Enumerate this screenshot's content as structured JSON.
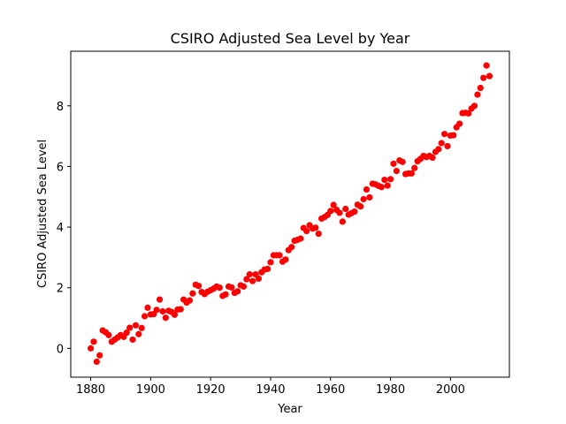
{
  "chart_data": {
    "type": "scatter",
    "title": "CSIRO Adjusted Sea Level by Year",
    "xlabel": "Year",
    "ylabel": "CSIRO Adjusted Sea Level",
    "xlim": [
      1873.35,
      2019.65
    ],
    "ylim": [
      -0.95,
      9.8
    ],
    "xticks": [
      1880,
      1900,
      1920,
      1940,
      1960,
      1980,
      2000
    ],
    "yticks": [
      0,
      2,
      4,
      6,
      8
    ],
    "grid": false,
    "marker_color": "#ff0000",
    "series": [
      {
        "x": [
          1880,
          1881,
          1882,
          1883,
          1884,
          1885,
          1886,
          1887,
          1888,
          1889,
          1890,
          1891,
          1892,
          1893,
          1894,
          1895,
          1896,
          1897,
          1898,
          1899,
          1900,
          1901,
          1902,
          1903,
          1904,
          1905,
          1906,
          1907,
          1908,
          1909,
          1910,
          1911,
          1912,
          1913,
          1914,
          1915,
          1916,
          1917,
          1918,
          1919,
          1920,
          1921,
          1922,
          1923,
          1924,
          1925,
          1926,
          1927,
          1928,
          1929,
          1930,
          1931,
          1932,
          1933,
          1934,
          1935,
          1936,
          1937,
          1938,
          1939,
          1940,
          1941,
          1942,
          1943,
          1944,
          1945,
          1946,
          1947,
          1948,
          1949,
          1950,
          1951,
          1952,
          1953,
          1954,
          1955,
          1956,
          1957,
          1958,
          1959,
          1960,
          1961,
          1962,
          1963,
          1964,
          1965,
          1966,
          1967,
          1968,
          1969,
          1970,
          1971,
          1972,
          1973,
          1974,
          1975,
          1976,
          1977,
          1978,
          1979,
          1980,
          1981,
          1982,
          1983,
          1984,
          1985,
          1986,
          1987,
          1988,
          1989,
          1990,
          1991,
          1992,
          1993,
          1994,
          1995,
          1996,
          1997,
          1998,
          1999,
          2000,
          2001,
          2002,
          2003,
          2004,
          2005,
          2006,
          2007,
          2008,
          2009,
          2010,
          2011,
          2012,
          2013
        ],
        "y": [
          0.0,
          0.22,
          -0.44,
          -0.23,
          0.59,
          0.53,
          0.44,
          0.22,
          0.29,
          0.36,
          0.44,
          0.38,
          0.52,
          0.68,
          0.29,
          0.76,
          0.47,
          0.67,
          1.06,
          1.34,
          1.12,
          1.13,
          1.27,
          1.61,
          1.22,
          1.01,
          1.24,
          1.2,
          1.11,
          1.28,
          1.29,
          1.61,
          1.51,
          1.58,
          1.81,
          2.1,
          2.06,
          1.86,
          1.79,
          1.87,
          1.92,
          1.97,
          2.04,
          2.0,
          1.73,
          1.78,
          2.04,
          2.01,
          1.83,
          1.88,
          2.08,
          2.04,
          2.28,
          2.44,
          2.22,
          2.44,
          2.3,
          2.51,
          2.6,
          2.62,
          2.84,
          3.07,
          3.07,
          3.07,
          2.86,
          2.93,
          3.24,
          3.34,
          3.55,
          3.58,
          3.62,
          3.97,
          3.87,
          4.06,
          3.95,
          3.98,
          3.78,
          4.28,
          4.33,
          4.4,
          4.53,
          4.73,
          4.57,
          4.47,
          4.18,
          4.6,
          4.41,
          4.46,
          4.51,
          4.74,
          4.68,
          4.92,
          5.24,
          4.98,
          5.43,
          5.41,
          5.36,
          5.32,
          5.56,
          5.37,
          5.58,
          6.09,
          5.85,
          6.2,
          6.15,
          5.75,
          5.77,
          5.77,
          5.95,
          6.17,
          6.25,
          6.35,
          6.31,
          6.35,
          6.29,
          6.48,
          6.57,
          6.77,
          7.07,
          6.67,
          7.02,
          7.03,
          7.29,
          7.41,
          7.76,
          7.77,
          7.75,
          7.91,
          8.0,
          8.37,
          8.59,
          8.92,
          9.33,
          8.98
        ]
      }
    ]
  }
}
